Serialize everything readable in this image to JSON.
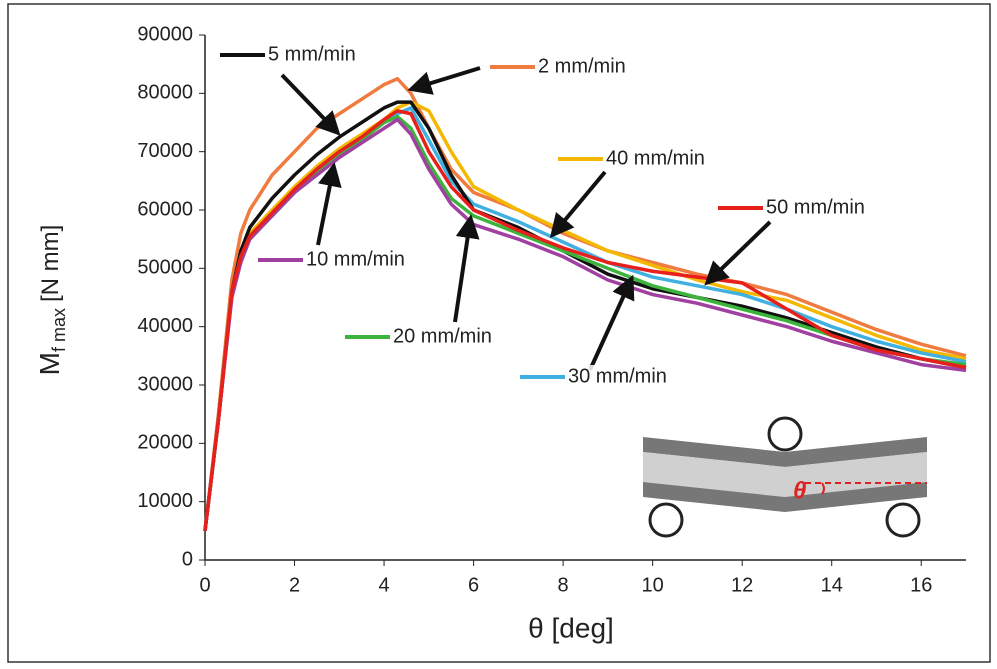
{
  "chart_data": {
    "type": "line",
    "x_label": "θ [deg]",
    "y_label": "M",
    "y_label_sub": "f max",
    "y_label_unit": "[N mm]",
    "inset_label": "θ",
    "x": [
      0,
      0.3,
      0.6,
      0.8,
      1,
      1.5,
      2,
      2.5,
      3,
      3.5,
      4,
      4.3,
      4.6,
      5,
      5.5,
      6,
      7,
      8,
      9,
      10,
      11,
      12,
      13,
      14,
      15,
      16,
      17
    ],
    "series": [
      {
        "name": "2 mm/min",
        "color": "#f07b3f",
        "values": [
          5000,
          25000,
          48000,
          56000,
          60000,
          66000,
          70000,
          74000,
          76500,
          79000,
          81500,
          82500,
          80000,
          74000,
          67000,
          63000,
          60000,
          56000,
          53000,
          51000,
          49000,
          47500,
          45500,
          42500,
          39500,
          37000,
          35000
        ]
      },
      {
        "name": "40 mm/min",
        "color": "#f5b800",
        "values": [
          5000,
          24000,
          46000,
          52000,
          56000,
          60000,
          64000,
          67500,
          70500,
          73000,
          75500,
          77500,
          78500,
          77000,
          70000,
          64000,
          60000,
          56500,
          53000,
          50500,
          48000,
          46000,
          44500,
          41500,
          38500,
          36000,
          34500
        ]
      },
      {
        "name": "30 mm/min",
        "color": "#40b0e0",
        "values": [
          5000,
          24000,
          46000,
          52000,
          55500,
          59500,
          63500,
          67000,
          70000,
          72500,
          75000,
          76500,
          77500,
          72000,
          65000,
          61000,
          58000,
          54500,
          51000,
          48500,
          47000,
          45500,
          43000,
          40000,
          37500,
          35500,
          34000
        ]
      },
      {
        "name": "5 mm/min",
        "color": "#111111",
        "values": [
          5000,
          24000,
          46000,
          53000,
          57000,
          62000,
          66000,
          69500,
          72500,
          75000,
          77500,
          78500,
          78500,
          74000,
          66000,
          60000,
          57000,
          53000,
          49000,
          46500,
          45000,
          43500,
          41500,
          39000,
          36500,
          34500,
          33000
        ]
      },
      {
        "name": "20 mm/min",
        "color": "#3cb43c",
        "values": [
          5000,
          24000,
          46000,
          52000,
          55000,
          59000,
          63000,
          66500,
          69500,
          72000,
          75000,
          76000,
          74000,
          68000,
          62000,
          59000,
          56000,
          53000,
          50000,
          47000,
          45000,
          43000,
          41000,
          38500,
          36000,
          34500,
          33500
        ]
      },
      {
        "name": "10 mm/min",
        "color": "#a040a0",
        "values": [
          5000,
          24000,
          45000,
          51000,
          55000,
          59000,
          63000,
          66000,
          69000,
          71500,
          74000,
          75500,
          73000,
          67000,
          61000,
          57500,
          55000,
          52000,
          48000,
          45500,
          44000,
          42000,
          40000,
          37500,
          35500,
          33500,
          32500
        ]
      },
      {
        "name": "50 mm/min",
        "color": "#e8201c",
        "values": [
          5000,
          24000,
          46000,
          52000,
          55500,
          59500,
          63500,
          67000,
          70000,
          72500,
          75500,
          77000,
          76500,
          70000,
          64000,
          60000,
          56500,
          53500,
          51000,
          49500,
          48500,
          47500,
          43000,
          38500,
          36000,
          34500,
          33000
        ]
      }
    ],
    "xlim": [
      0,
      17
    ],
    "xticks": [
      0,
      2,
      4,
      6,
      8,
      10,
      12,
      14,
      16
    ],
    "ylim": [
      0,
      90000
    ],
    "yticks": [
      0,
      10000,
      20000,
      30000,
      40000,
      50000,
      60000,
      70000,
      80000,
      90000
    ]
  }
}
